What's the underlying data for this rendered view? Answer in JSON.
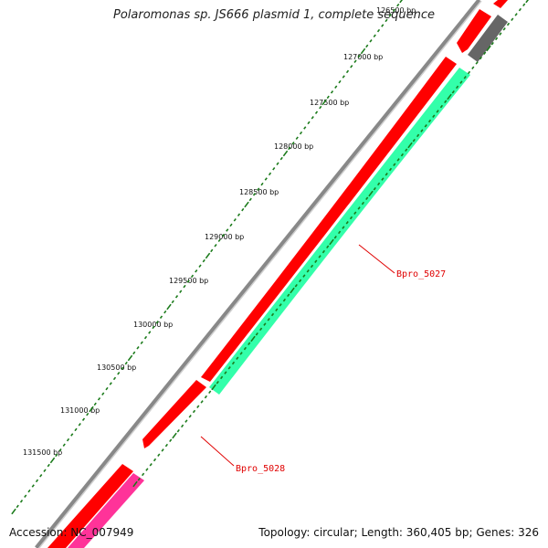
{
  "title": "Polaromonas sp. JS666 plasmid 1, complete sequence",
  "footer": {
    "accession": "Accession: NC_007949",
    "summary": "Topology: circular; Length: 360,405 bp; Genes: 326"
  },
  "ticks": [
    "126500 bp",
    "127000 bp",
    "127500 bp",
    "128000 bp",
    "128500 bp",
    "129000 bp",
    "129500 bp",
    "130000 bp",
    "130500 bp",
    "131000 bp",
    "131500 bp"
  ],
  "genes": {
    "bpro_5027": "Bpro_5027",
    "bpro_5028": "Bpro_5028"
  },
  "colors": {
    "forward_cds": "#ff0000",
    "reverse_cds": "#33ffaa",
    "other": "#ff3399",
    "backbone": "#888888",
    "ticks": "#1a7a1a"
  }
}
